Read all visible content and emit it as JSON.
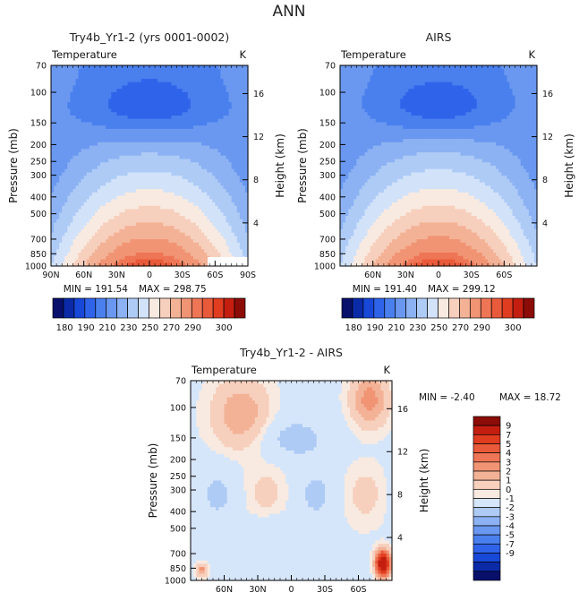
{
  "figure_title": "ANN",
  "colors": {
    "tempLevels": [
      "#08106b",
      "#0a2aa8",
      "#1848d8",
      "#2f64ea",
      "#4a80ee",
      "#6a98f0",
      "#8cb2f3",
      "#aecbf6",
      "#d2e2f9",
      "#f8eae0",
      "#f7cfbd",
      "#f3b296",
      "#f19474",
      "#ee7555",
      "#e95a3a",
      "#e03c1f",
      "#c41e10",
      "#8c0c08"
    ],
    "diffLevels": [
      "#08106b",
      "#0a2aa8",
      "#1848d8",
      "#2f64ea",
      "#4a80ee",
      "#6a98f0",
      "#8cb2f3",
      "#aecbf6",
      "#d6e6fa",
      "#f8eae0",
      "#f7cfbd",
      "#f3b296",
      "#f19474",
      "#ee7555",
      "#e95a3a",
      "#e03c1f",
      "#c41e10",
      "#8c0c08"
    ]
  },
  "chart_data": [
    {
      "type": "heatmap",
      "id": "model",
      "title": "Try4b_Yr1-2 (yrs 0001-0002)",
      "field_label": "Temperature",
      "units": "K",
      "xlabel": "",
      "ylabel": "Pressure (mb)",
      "y2label": "Height (km)",
      "x_range": [
        90,
        -90
      ],
      "x_ticks": [
        {
          "v": 90,
          "label": "90N"
        },
        {
          "v": 60,
          "label": "60N"
        },
        {
          "v": 30,
          "label": "30N"
        },
        {
          "v": 0,
          "label": "0"
        },
        {
          "v": -30,
          "label": "30S"
        },
        {
          "v": -60,
          "label": "60S"
        },
        {
          "v": -90,
          "label": "90S"
        }
      ],
      "y_ticks": [
        {
          "v": 70,
          "label": "70"
        },
        {
          "v": 100,
          "label": "100"
        },
        {
          "v": 150,
          "label": "150"
        },
        {
          "v": 200,
          "label": "200"
        },
        {
          "v": 250,
          "label": "250"
        },
        {
          "v": 300,
          "label": "300"
        },
        {
          "v": 400,
          "label": "400"
        },
        {
          "v": 500,
          "label": "500"
        },
        {
          "v": 700,
          "label": "700"
        },
        {
          "v": 850,
          "label": "850"
        },
        {
          "v": 1000,
          "label": "1000"
        }
      ],
      "height_ticks": [
        {
          "v": 4,
          "label": "4"
        },
        {
          "v": 8,
          "label": "8"
        },
        {
          "v": 12,
          "label": "12"
        },
        {
          "v": 16,
          "label": "16"
        }
      ],
      "min_label": "MIN = 191.54",
      "max_label": "MAX = 298.75",
      "min": 191.54,
      "max": 298.75,
      "approx_field": {
        "lat": [
          90,
          60,
          30,
          0,
          -30,
          -60,
          -90
        ],
        "pressure_mb": [
          70,
          100,
          150,
          200,
          250,
          300,
          400,
          500,
          700,
          850,
          1000
        ]
      }
    },
    {
      "type": "heatmap",
      "id": "obs",
      "title": "AIRS",
      "field_label": "Temperature",
      "units": "K",
      "xlabel": "",
      "ylabel": "Pressure (mb)",
      "y2label": "Height (km)",
      "x_range": [
        90,
        -90
      ],
      "x_ticks": [
        {
          "v": 60,
          "label": "60N"
        },
        {
          "v": 30,
          "label": "30N"
        },
        {
          "v": 0,
          "label": "0"
        },
        {
          "v": -30,
          "label": "30S"
        },
        {
          "v": -60,
          "label": "60S"
        }
      ],
      "y_ticks": [
        {
          "v": 70,
          "label": "70"
        },
        {
          "v": 100,
          "label": "100"
        },
        {
          "v": 150,
          "label": "150"
        },
        {
          "v": 200,
          "label": "200"
        },
        {
          "v": 250,
          "label": "250"
        },
        {
          "v": 300,
          "label": "300"
        },
        {
          "v": 400,
          "label": "400"
        },
        {
          "v": 500,
          "label": "500"
        },
        {
          "v": 700,
          "label": "700"
        },
        {
          "v": 850,
          "label": "850"
        },
        {
          "v": 1000,
          "label": "1000"
        }
      ],
      "height_ticks": [
        {
          "v": 4,
          "label": "4"
        },
        {
          "v": 8,
          "label": "8"
        },
        {
          "v": 12,
          "label": "12"
        },
        {
          "v": 16,
          "label": "16"
        }
      ],
      "min_label": "MIN = 191.40",
      "max_label": "MAX = 299.12",
      "min": 191.4,
      "max": 299.12
    },
    {
      "type": "heatmap",
      "id": "diff",
      "title": "Try4b_Yr1-2 - AIRS",
      "field_label": "Temperature",
      "units": "K",
      "xlabel": "",
      "ylabel": "Pressure (mb)",
      "y2label": "Height (km)",
      "x_range": [
        90,
        -90
      ],
      "x_ticks": [
        {
          "v": 60,
          "label": "60N"
        },
        {
          "v": 30,
          "label": "30N"
        },
        {
          "v": 0,
          "label": "0"
        },
        {
          "v": -30,
          "label": "30S"
        },
        {
          "v": -60,
          "label": "60S"
        }
      ],
      "y_ticks": [
        {
          "v": 70,
          "label": "70"
        },
        {
          "v": 100,
          "label": "100"
        },
        {
          "v": 150,
          "label": "150"
        },
        {
          "v": 200,
          "label": "200"
        },
        {
          "v": 250,
          "label": "250"
        },
        {
          "v": 300,
          "label": "300"
        },
        {
          "v": 400,
          "label": "400"
        },
        {
          "v": 500,
          "label": "500"
        },
        {
          "v": 700,
          "label": "700"
        },
        {
          "v": 850,
          "label": "850"
        },
        {
          "v": 1000,
          "label": "1000"
        }
      ],
      "height_ticks": [
        {
          "v": 4,
          "label": "4"
        },
        {
          "v": 8,
          "label": "8"
        },
        {
          "v": 12,
          "label": "12"
        },
        {
          "v": 16,
          "label": "16"
        }
      ],
      "min_label": "MIN = -2.40",
      "max_label": "MAX = 18.72",
      "min": -2.4,
      "max": 18.72
    }
  ],
  "colorbar_temp": {
    "orientation": "horizontal",
    "labels": [
      "180",
      "190",
      "210",
      "230",
      "250",
      "270",
      "290",
      "300"
    ]
  },
  "colorbar_diff": {
    "orientation": "vertical",
    "labels": [
      "9",
      "7",
      "5",
      "4",
      "3",
      "2",
      "1",
      "0",
      "-1",
      "-2",
      "-3",
      "-4",
      "-5",
      "-7",
      "-9"
    ]
  }
}
